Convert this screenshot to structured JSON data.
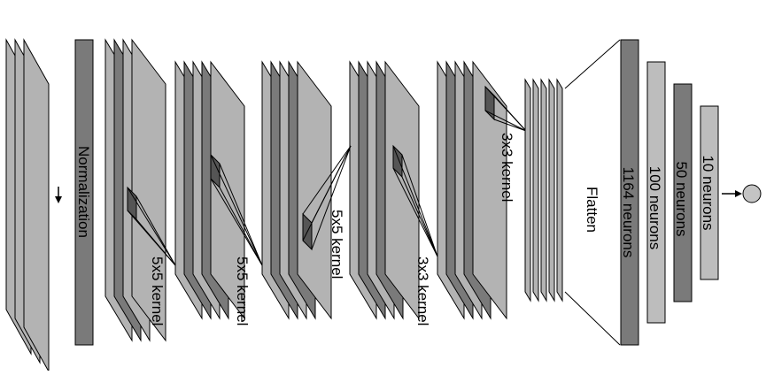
{
  "diagram": {
    "labels": {
      "normalization": "Normalization",
      "kernel_conv1": "5x5 kernel",
      "kernel_conv2": "5x5 kernel",
      "kernel_conv3": "5x5 kernel",
      "kernel_conv4": "3x3 kernel",
      "kernel_conv5": "3x3 kernel",
      "flatten": "Flatten",
      "fc1": "1164 neurons",
      "fc2": "100 neurons",
      "fc3": "50 neurons",
      "fc4": "10 neurons"
    },
    "colors": {
      "plane_light": "#b3b3b3",
      "plane_dark": "#7a7a7a",
      "fc_light": "#bdbdbd",
      "output_node": "#c4c4c4",
      "stroke": "#000000"
    }
  }
}
